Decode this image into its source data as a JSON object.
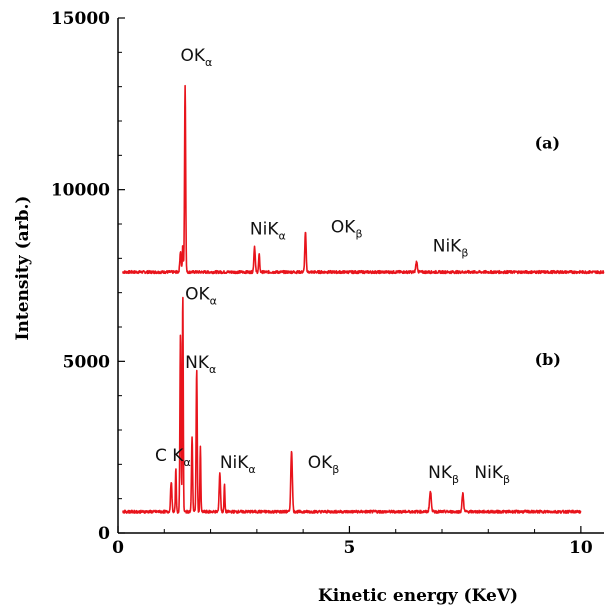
{
  "chart_data": {
    "type": "line",
    "title": "",
    "xlabel": "Kinetic energy (KeV)",
    "ylabel": "Intensity (arb.)",
    "xlim": [
      0,
      10.5
    ],
    "ylim": [
      0,
      15000
    ],
    "x_ticks": [
      {
        "value": 0,
        "label": "0"
      },
      {
        "value": 5,
        "label": "5"
      },
      {
        "value": 10,
        "label": "10"
      }
    ],
    "y_ticks": [
      {
        "value": 0,
        "label": "0"
      },
      {
        "value": 5000,
        "label": "5000"
      },
      {
        "value": 10000,
        "label": "10000"
      },
      {
        "value": 15000,
        "label": "15000"
      }
    ],
    "line_color": "#e8141c",
    "series": [
      {
        "panel": "(a)",
        "baseline": 7600,
        "xrange": [
          0.1,
          10.5
        ],
        "peaks": [
          {
            "x": 1.35,
            "y": 8200,
            "w": 0.03
          },
          {
            "x": 1.45,
            "y": 13050,
            "w": 0.025
          },
          {
            "x": 1.4,
            "y": 8400,
            "w": 0.02
          },
          {
            "x": 2.95,
            "y": 8350,
            "w": 0.03
          },
          {
            "x": 3.05,
            "y": 8100,
            "w": 0.025
          },
          {
            "x": 4.05,
            "y": 8750,
            "w": 0.03
          },
          {
            "x": 6.45,
            "y": 7900,
            "w": 0.035
          }
        ],
        "labels": [
          {
            "x": 1.35,
            "y": 13750,
            "base": "OK",
            "sub": "α"
          },
          {
            "x": 2.85,
            "y": 8700,
            "base": "NiK",
            "sub": "α"
          },
          {
            "x": 4.6,
            "y": 8750,
            "base": "OK",
            "sub": "β"
          },
          {
            "x": 6.8,
            "y": 8200,
            "base": "NiK",
            "sub": "β"
          }
        ]
      },
      {
        "panel": "(b)",
        "baseline": 620,
        "xrange": [
          0.1,
          10.0
        ],
        "peaks": [
          {
            "x": 1.15,
            "y": 1500,
            "w": 0.03
          },
          {
            "x": 1.25,
            "y": 1900,
            "w": 0.02
          },
          {
            "x": 1.35,
            "y": 5800,
            "w": 0.025
          },
          {
            "x": 1.4,
            "y": 7000,
            "w": 0.02
          },
          {
            "x": 1.6,
            "y": 2800,
            "w": 0.025
          },
          {
            "x": 1.7,
            "y": 4750,
            "w": 0.025
          },
          {
            "x": 1.78,
            "y": 2500,
            "w": 0.02
          },
          {
            "x": 2.2,
            "y": 1750,
            "w": 0.03
          },
          {
            "x": 2.3,
            "y": 1400,
            "w": 0.02
          },
          {
            "x": 3.75,
            "y": 2400,
            "w": 0.035
          },
          {
            "x": 6.75,
            "y": 1200,
            "w": 0.04
          },
          {
            "x": 7.45,
            "y": 1150,
            "w": 0.035
          }
        ],
        "labels": [
          {
            "x": 0.8,
            "y": 2100,
            "base": "C K",
            "sub": "α"
          },
          {
            "x": 1.45,
            "y": 6800,
            "base": "OK",
            "sub": "α"
          },
          {
            "x": 1.45,
            "y": 4800,
            "base": "NK",
            "sub": "α"
          },
          {
            "x": 2.2,
            "y": 1900,
            "base": "NiK",
            "sub": "α"
          },
          {
            "x": 4.1,
            "y": 1900,
            "base": "OK",
            "sub": "β"
          },
          {
            "x": 6.7,
            "y": 1600,
            "base": "NK",
            "sub": "β"
          },
          {
            "x": 7.7,
            "y": 1600,
            "base": "NiK",
            "sub": "β"
          }
        ]
      }
    ],
    "panel_labels": [
      {
        "text": "(a)",
        "x": 9.0,
        "y": 11200
      },
      {
        "text": "(b)",
        "x": 9.0,
        "y": 4900
      }
    ],
    "grid": false,
    "legend": "none"
  }
}
